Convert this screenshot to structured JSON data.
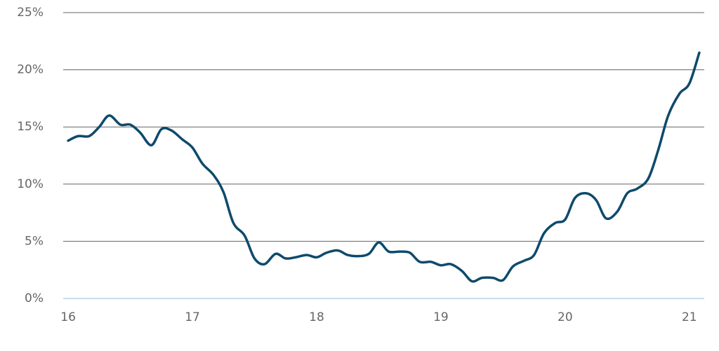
{
  "chart_data": {
    "type": "line",
    "x": [
      16.0,
      16.08,
      16.17,
      16.25,
      16.33,
      16.42,
      16.5,
      16.58,
      16.67,
      16.75,
      16.83,
      16.92,
      17.0,
      17.08,
      17.17,
      17.25,
      17.33,
      17.42,
      17.5,
      17.58,
      17.67,
      17.75,
      17.83,
      17.92,
      18.0,
      18.08,
      18.17,
      18.25,
      18.33,
      18.42,
      18.5,
      18.58,
      18.67,
      18.75,
      18.83,
      18.92,
      19.0,
      19.08,
      19.17,
      19.25,
      19.33,
      19.42,
      19.5,
      19.58,
      19.67,
      19.75,
      19.83,
      19.92,
      20.0,
      20.08,
      20.17,
      20.25,
      20.33,
      20.42,
      20.5,
      20.58,
      20.67,
      20.75,
      20.83,
      20.92,
      21.0,
      21.08
    ],
    "values": [
      13.8,
      14.2,
      14.2,
      15.0,
      16.0,
      15.2,
      15.2,
      14.5,
      13.4,
      14.8,
      14.7,
      13.9,
      13.2,
      11.8,
      10.8,
      9.3,
      6.6,
      5.5,
      3.5,
      3.0,
      3.9,
      3.5,
      3.6,
      3.8,
      3.6,
      4.0,
      4.2,
      3.8,
      3.7,
      3.9,
      4.9,
      4.1,
      4.1,
      4.0,
      3.2,
      3.2,
      2.9,
      3.0,
      2.4,
      1.5,
      1.8,
      1.8,
      1.6,
      2.8,
      3.3,
      3.8,
      5.7,
      6.6,
      6.9,
      8.8,
      9.2,
      8.6,
      7.0,
      7.6,
      9.2,
      9.6,
      10.5,
      13.0,
      16.0,
      17.9,
      18.8,
      21.5
    ],
    "color": "#0e4a6c",
    "xlim": [
      15.96,
      21.12
    ],
    "xticks": [
      16,
      17,
      18,
      19,
      20,
      21
    ],
    "ylim": [
      0,
      25
    ],
    "yticks": [
      {
        "value": 0,
        "label": "0%"
      },
      {
        "value": 5,
        "label": "5%"
      },
      {
        "value": 10,
        "label": "10%"
      },
      {
        "value": 15,
        "label": "15%"
      },
      {
        "value": 20,
        "label": "20%"
      },
      {
        "value": 25,
        "label": "25%"
      }
    ],
    "grid": true
  }
}
